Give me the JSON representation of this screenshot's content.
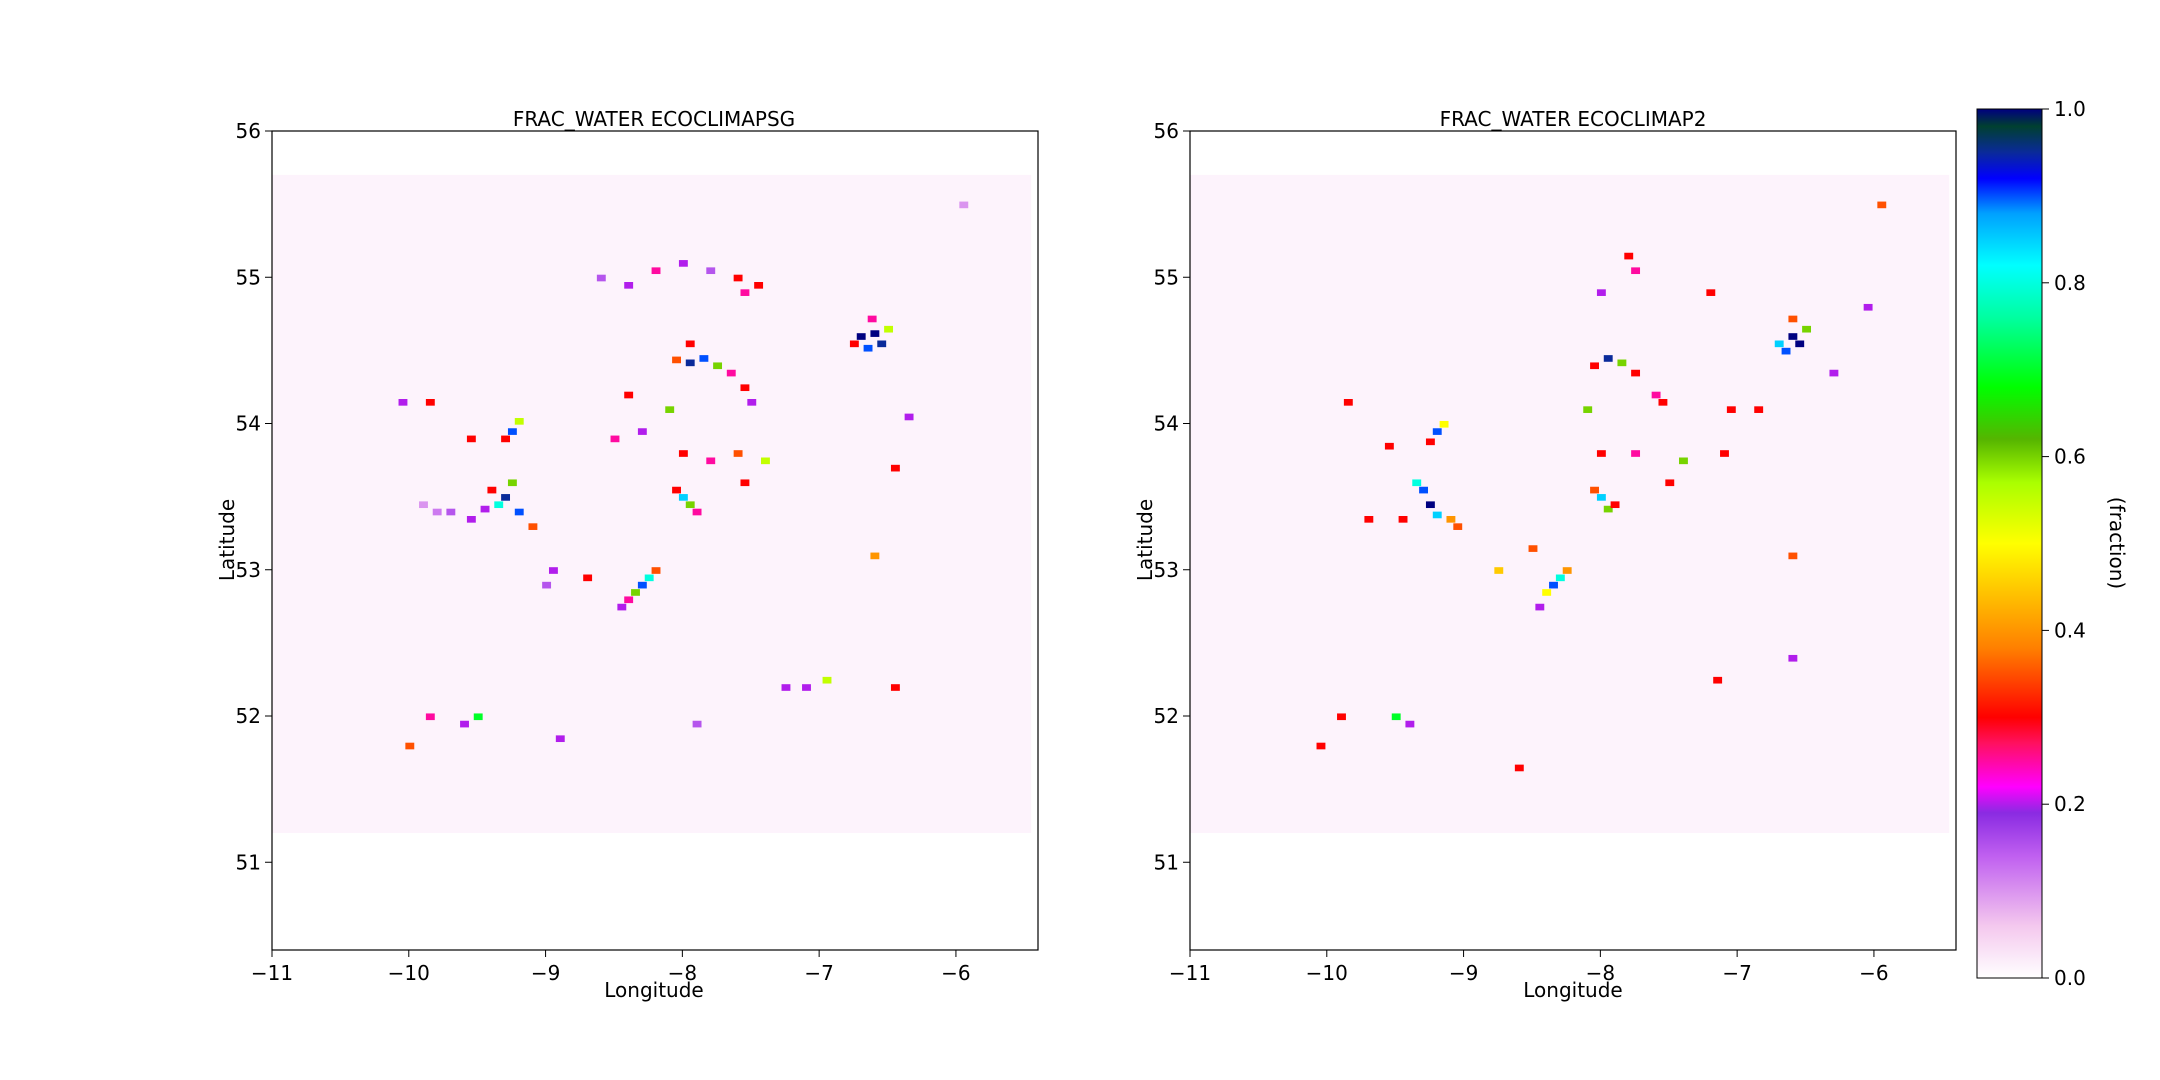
{
  "chart_data": [
    {
      "type": "heatmap",
      "title": "FRAC_WATER ECOCLIMAPSG",
      "xlabel": "Longitude",
      "ylabel": "Latitude",
      "xlim": [
        -11.0,
        -5.4
      ],
      "ylim": [
        50.4,
        56.0
      ],
      "xticks": [
        -11,
        -10,
        -9,
        -8,
        -7,
        -6
      ],
      "xtick_labels": [
        "−11",
        "−10",
        "−9",
        "−8",
        "−7",
        "−6"
      ],
      "yticks": [
        51,
        52,
        53,
        54,
        55,
        56
      ],
      "ytick_labels": [
        "51",
        "52",
        "53",
        "54",
        "55",
        "56"
      ],
      "data_extent": {
        "lon": [
          -11.0,
          -5.45
        ],
        "lat": [
          51.2,
          55.7
        ]
      },
      "background_value": 0.0,
      "cells": [
        [
          -6.6,
          54.62,
          1.0
        ],
        [
          -6.7,
          54.6,
          1.0
        ],
        [
          -6.55,
          54.55,
          0.95
        ],
        [
          -6.65,
          54.52,
          0.9
        ],
        [
          -6.5,
          54.65,
          0.55
        ],
        [
          -6.75,
          54.55,
          0.3
        ],
        [
          -6.62,
          54.72,
          0.25
        ],
        [
          -9.3,
          53.5,
          0.95
        ],
        [
          -9.35,
          53.45,
          0.8
        ],
        [
          -9.25,
          53.6,
          0.6
        ],
        [
          -9.2,
          53.4,
          0.9
        ],
        [
          -9.1,
          53.3,
          0.35
        ],
        [
          -9.4,
          53.55,
          0.3
        ],
        [
          -9.45,
          53.42,
          0.2
        ],
        [
          -9.25,
          53.95,
          0.9
        ],
        [
          -9.2,
          54.02,
          0.55
        ],
        [
          -9.3,
          53.9,
          0.3
        ],
        [
          -7.95,
          54.42,
          0.95
        ],
        [
          -7.85,
          54.45,
          0.9
        ],
        [
          -7.75,
          54.4,
          0.6
        ],
        [
          -8.05,
          54.44,
          0.35
        ],
        [
          -7.65,
          54.35,
          0.25
        ],
        [
          -7.55,
          54.25,
          0.3
        ],
        [
          -7.5,
          54.15,
          0.2
        ],
        [
          -8.3,
          52.9,
          0.9
        ],
        [
          -8.35,
          52.85,
          0.6
        ],
        [
          -8.25,
          52.95,
          0.8
        ],
        [
          -8.2,
          53.0,
          0.35
        ],
        [
          -8.4,
          52.8,
          0.25
        ],
        [
          -8.45,
          52.75,
          0.2
        ],
        [
          -8.0,
          53.5,
          0.85
        ],
        [
          -7.95,
          53.45,
          0.6
        ],
        [
          -8.05,
          53.55,
          0.3
        ],
        [
          -7.9,
          53.4,
          0.25
        ],
        [
          -8.1,
          54.1,
          0.6
        ],
        [
          -8.0,
          53.8,
          0.3
        ],
        [
          -7.8,
          53.75,
          0.25
        ],
        [
          -7.6,
          53.8,
          0.35
        ],
        [
          -7.4,
          53.75,
          0.55
        ],
        [
          -7.55,
          53.6,
          0.3
        ],
        [
          -8.4,
          54.2,
          0.3
        ],
        [
          -8.5,
          53.9,
          0.25
        ],
        [
          -8.3,
          53.95,
          0.2
        ],
        [
          -7.95,
          54.55,
          0.3
        ],
        [
          -7.55,
          54.9,
          0.25
        ],
        [
          -7.45,
          54.95,
          0.3
        ],
        [
          -6.6,
          53.1,
          0.4
        ],
        [
          -6.95,
          52.25,
          0.55
        ],
        [
          -7.1,
          52.2,
          0.2
        ],
        [
          -7.25,
          52.2,
          0.2
        ],
        [
          -9.5,
          52.0,
          0.7
        ],
        [
          -9.6,
          51.95,
          0.2
        ],
        [
          -10.0,
          51.8,
          0.35
        ],
        [
          -9.85,
          52.0,
          0.25
        ],
        [
          -8.9,
          51.85,
          0.2
        ],
        [
          -7.9,
          51.95,
          0.15
        ],
        [
          -9.85,
          54.15,
          0.3
        ],
        [
          -9.55,
          53.9,
          0.3
        ],
        [
          -10.05,
          54.15,
          0.2
        ],
        [
          -9.55,
          53.35,
          0.2
        ],
        [
          -9.7,
          53.4,
          0.15
        ],
        [
          -9.8,
          53.4,
          0.12
        ],
        [
          -9.9,
          53.45,
          0.1
        ],
        [
          -8.7,
          52.95,
          0.3
        ],
        [
          -8.95,
          53.0,
          0.2
        ],
        [
          -9.0,
          52.9,
          0.15
        ],
        [
          -6.45,
          53.7,
          0.3
        ],
        [
          -6.45,
          52.2,
          0.3
        ],
        [
          -5.95,
          55.5,
          0.1
        ],
        [
          -6.35,
          54.05,
          0.2
        ],
        [
          -8.6,
          55.0,
          0.15
        ],
        [
          -8.4,
          54.95,
          0.2
        ],
        [
          -8.2,
          55.05,
          0.25
        ],
        [
          -8.0,
          55.1,
          0.2
        ],
        [
          -7.8,
          55.05,
          0.15
        ],
        [
          -7.6,
          55.0,
          0.3
        ]
      ]
    },
    {
      "type": "heatmap",
      "title": "FRAC_WATER ECOCLIMAP2",
      "xlabel": "Longitude",
      "ylabel": "Latitude",
      "xlim": [
        -11.0,
        -5.4
      ],
      "ylim": [
        50.4,
        56.0
      ],
      "xticks": [
        -11,
        -10,
        -9,
        -8,
        -7,
        -6
      ],
      "xtick_labels": [
        "−11",
        "−10",
        "−9",
        "−8",
        "−7",
        "−6"
      ],
      "yticks": [
        51,
        52,
        53,
        54,
        55,
        56
      ],
      "ytick_labels": [
        "51",
        "52",
        "53",
        "54",
        "55",
        "56"
      ],
      "data_extent": {
        "lon": [
          -11.0,
          -5.45
        ],
        "lat": [
          51.2,
          55.7
        ]
      },
      "background_value": 0.0,
      "cells": [
        [
          -6.6,
          54.6,
          1.0
        ],
        [
          -6.55,
          54.55,
          1.0
        ],
        [
          -6.65,
          54.5,
          0.9
        ],
        [
          -6.7,
          54.55,
          0.85
        ],
        [
          -6.5,
          54.65,
          0.6
        ],
        [
          -6.6,
          54.72,
          0.35
        ],
        [
          -9.25,
          53.45,
          1.0
        ],
        [
          -9.3,
          53.55,
          0.9
        ],
        [
          -9.35,
          53.6,
          0.8
        ],
        [
          -9.2,
          53.38,
          0.85
        ],
        [
          -9.1,
          53.35,
          0.4
        ],
        [
          -9.05,
          53.3,
          0.35
        ],
        [
          -9.45,
          53.35,
          0.3
        ],
        [
          -9.2,
          53.95,
          0.9
        ],
        [
          -9.15,
          54.0,
          0.5
        ],
        [
          -9.25,
          53.88,
          0.3
        ],
        [
          -7.95,
          54.45,
          0.95
        ],
        [
          -7.85,
          54.42,
          0.6
        ],
        [
          -8.05,
          54.4,
          0.3
        ],
        [
          -7.75,
          54.35,
          0.3
        ],
        [
          -7.6,
          54.2,
          0.25
        ],
        [
          -7.55,
          54.15,
          0.3
        ],
        [
          -8.35,
          52.9,
          0.9
        ],
        [
          -8.3,
          52.95,
          0.8
        ],
        [
          -8.25,
          53.0,
          0.4
        ],
        [
          -8.4,
          52.85,
          0.5
        ],
        [
          -8.45,
          52.75,
          0.2
        ],
        [
          -8.0,
          53.5,
          0.85
        ],
        [
          -7.95,
          53.42,
          0.6
        ],
        [
          -8.05,
          53.55,
          0.35
        ],
        [
          -7.9,
          53.45,
          0.3
        ],
        [
          -8.1,
          54.1,
          0.6
        ],
        [
          -7.4,
          53.75,
          0.6
        ],
        [
          -7.5,
          53.6,
          0.3
        ],
        [
          -7.1,
          53.8,
          0.3
        ],
        [
          -8.0,
          53.8,
          0.3
        ],
        [
          -7.75,
          53.8,
          0.25
        ],
        [
          -7.8,
          55.15,
          0.3
        ],
        [
          -7.75,
          55.05,
          0.25
        ],
        [
          -8.0,
          54.9,
          0.2
        ],
        [
          -7.2,
          54.9,
          0.3
        ],
        [
          -6.6,
          53.1,
          0.35
        ],
        [
          -7.15,
          52.25,
          0.3
        ],
        [
          -9.5,
          52.0,
          0.7
        ],
        [
          -9.9,
          52.0,
          0.3
        ],
        [
          -10.05,
          51.8,
          0.3
        ],
        [
          -9.4,
          51.95,
          0.2
        ],
        [
          -8.6,
          51.65,
          0.3
        ],
        [
          -9.85,
          54.15,
          0.3
        ],
        [
          -9.55,
          53.85,
          0.3
        ],
        [
          -9.7,
          53.35,
          0.3
        ],
        [
          -8.5,
          53.15,
          0.35
        ],
        [
          -8.75,
          53.0,
          0.45
        ],
        [
          -6.3,
          54.35,
          0.2
        ],
        [
          -6.05,
          54.8,
          0.2
        ],
        [
          -5.95,
          55.5,
          0.35
        ],
        [
          -6.6,
          52.4,
          0.2
        ],
        [
          -7.05,
          54.1,
          0.3
        ],
        [
          -6.85,
          54.1,
          0.3
        ]
      ]
    }
  ],
  "colorbar": {
    "label": "(fraction)",
    "range": [
      0.0,
      1.0
    ],
    "ticks": [
      0.0,
      0.2,
      0.4,
      0.6,
      0.8,
      1.0
    ],
    "tick_labels": [
      "0.0",
      "0.2",
      "0.4",
      "0.6",
      "0.8",
      "1.0"
    ],
    "colormap": "gist_ncar_r-like",
    "stops": [
      {
        "v": 0.0,
        "color": "#ffffff"
      },
      {
        "v": 0.06,
        "color": "#f4c8ee"
      },
      {
        "v": 0.14,
        "color": "#c060f0"
      },
      {
        "v": 0.19,
        "color": "#8a2be2"
      },
      {
        "v": 0.22,
        "color": "#ff00ff"
      },
      {
        "v": 0.27,
        "color": "#ff1060"
      },
      {
        "v": 0.3,
        "color": "#ff0000"
      },
      {
        "v": 0.38,
        "color": "#ff8000"
      },
      {
        "v": 0.5,
        "color": "#ffff00"
      },
      {
        "v": 0.57,
        "color": "#aaff00"
      },
      {
        "v": 0.62,
        "color": "#55b500"
      },
      {
        "v": 0.68,
        "color": "#00ff00"
      },
      {
        "v": 0.76,
        "color": "#00ffa0"
      },
      {
        "v": 0.82,
        "color": "#00ffff"
      },
      {
        "v": 0.88,
        "color": "#00a0ff"
      },
      {
        "v": 0.92,
        "color": "#0000ff"
      },
      {
        "v": 0.95,
        "color": "#0a2a9a"
      },
      {
        "v": 0.98,
        "color": "#004030"
      },
      {
        "v": 1.0,
        "color": "#000080"
      }
    ]
  }
}
